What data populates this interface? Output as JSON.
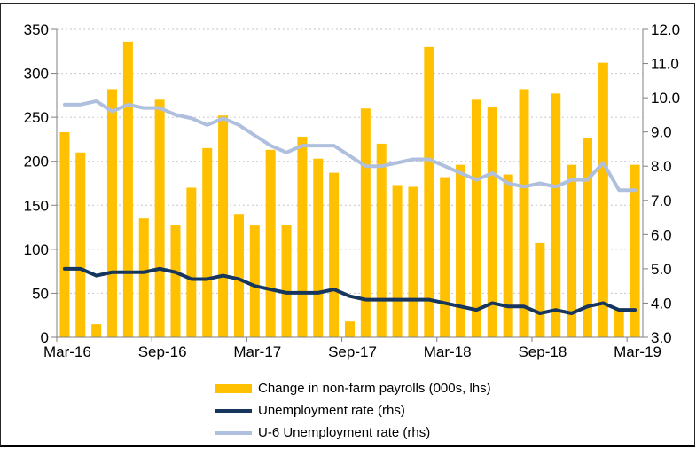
{
  "chart_data": {
    "type": "bar",
    "title": "",
    "categories": [
      "Mar-16",
      "Apr-16",
      "May-16",
      "Jun-16",
      "Jul-16",
      "Aug-16",
      "Sep-16",
      "Oct-16",
      "Nov-16",
      "Dec-16",
      "Jan-17",
      "Feb-17",
      "Mar-17",
      "Apr-17",
      "May-17",
      "Jun-17",
      "Jul-17",
      "Aug-17",
      "Sep-17",
      "Oct-17",
      "Nov-17",
      "Dec-17",
      "Jan-18",
      "Feb-18",
      "Mar-18",
      "Apr-18",
      "May-18",
      "Jun-18",
      "Jul-18",
      "Aug-18",
      "Sep-18",
      "Oct-18",
      "Nov-18",
      "Dec-18",
      "Jan-19",
      "Feb-19",
      "Mar-19"
    ],
    "x_tick_labels": [
      "Mar-16",
      "Sep-16",
      "Mar-17",
      "Sep-17",
      "Mar-18",
      "Sep-18",
      "Mar-19"
    ],
    "series": [
      {
        "name": "Change in non-farm payrolls (000s, lhs)",
        "type": "bar",
        "axis": "left",
        "color": "#FFC000",
        "values": [
          233,
          210,
          15,
          282,
          336,
          135,
          270,
          128,
          170,
          215,
          252,
          140,
          127,
          213,
          128,
          228,
          203,
          187,
          18,
          260,
          220,
          173,
          171,
          330,
          182,
          196,
          270,
          262,
          185,
          282,
          107,
          277,
          196,
          227,
          312,
          33,
          196
        ]
      },
      {
        "name": "Unemployment rate (rhs)",
        "type": "line",
        "axis": "right",
        "color": "#17365D",
        "values": [
          5.0,
          5.0,
          4.8,
          4.9,
          4.9,
          4.9,
          5.0,
          4.9,
          4.7,
          4.7,
          4.8,
          4.7,
          4.5,
          4.4,
          4.3,
          4.3,
          4.3,
          4.4,
          4.2,
          4.1,
          4.1,
          4.1,
          4.1,
          4.1,
          4.0,
          3.9,
          3.8,
          4.0,
          3.9,
          3.9,
          3.7,
          3.8,
          3.7,
          3.9,
          4.0,
          3.8,
          3.8
        ]
      },
      {
        "name": "U-6 Unemployment rate (rhs)",
        "type": "line",
        "axis": "right",
        "color": "#AFC0DF",
        "values": [
          9.8,
          9.8,
          9.9,
          9.6,
          9.8,
          9.7,
          9.7,
          9.5,
          9.4,
          9.2,
          9.4,
          9.2,
          8.9,
          8.6,
          8.4,
          8.6,
          8.6,
          8.6,
          8.3,
          8.0,
          8.0,
          8.1,
          8.2,
          8.2,
          8.0,
          7.8,
          7.6,
          7.8,
          7.5,
          7.4,
          7.5,
          7.4,
          7.6,
          7.6,
          8.1,
          7.3,
          7.3
        ]
      }
    ],
    "left_axis": {
      "min": 0,
      "max": 350,
      "step": 50,
      "tick_labels": [
        "0",
        "50",
        "100",
        "150",
        "200",
        "250",
        "300",
        "350"
      ]
    },
    "right_axis": {
      "min": 3.0,
      "max": 12.0,
      "step": 1.0,
      "tick_labels": [
        "3.0",
        "4.0",
        "5.0",
        "6.0",
        "7.0",
        "8.0",
        "9.0",
        "10.0",
        "11.0",
        "12.0"
      ]
    },
    "grid": "horizontal-dotted",
    "legend_position": "bottom"
  },
  "colors": {
    "bar": "#FFC000",
    "unemployment_line": "#17365D",
    "u6_line": "#AFC0DF",
    "gridline": "#C6C6C6",
    "axis": "#808080",
    "tick_text": "#000000",
    "frame_border": "#000000",
    "background": "#FFFFFF"
  }
}
